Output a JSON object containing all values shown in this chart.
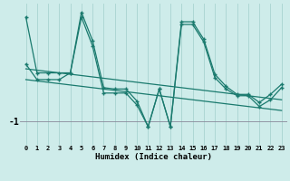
{
  "xlabel": "Humidex (Indice chaleur)",
  "background_color": "#ceecea",
  "line_color": "#1a7a6e",
  "grid_color": "#a8d4d0",
  "y_tick_val": -1.0,
  "y_tick_label": "-1",
  "xlim": [
    -0.5,
    23.5
  ],
  "ylim": [
    -1.35,
    0.75
  ],
  "series1": [
    0.55,
    -0.28,
    -0.28,
    -0.28,
    -0.28,
    0.62,
    0.2,
    -0.5,
    -0.52,
    -0.52,
    -0.7,
    -1.08,
    -0.52,
    -1.08,
    0.48,
    0.48,
    0.22,
    -0.3,
    -0.48,
    -0.6,
    -0.6,
    -0.72,
    -0.6,
    -0.45
  ],
  "series2": [
    -0.15,
    -0.38,
    -0.38,
    -0.38,
    -0.28,
    0.55,
    0.12,
    -0.58,
    -0.58,
    -0.58,
    -0.76,
    -1.08,
    -0.52,
    -1.08,
    0.44,
    0.44,
    0.18,
    -0.35,
    -0.52,
    -0.62,
    -0.62,
    -0.78,
    -0.68,
    -0.5
  ],
  "trend1": [
    -0.22,
    -0.24,
    -0.26,
    -0.28,
    -0.3,
    -0.32,
    -0.34,
    -0.36,
    -0.38,
    -0.4,
    -0.42,
    -0.44,
    -0.46,
    -0.48,
    -0.5,
    -0.52,
    -0.54,
    -0.56,
    -0.58,
    -0.6,
    -0.62,
    -0.64,
    -0.66,
    -0.68
  ],
  "trend2": [
    -0.38,
    -0.4,
    -0.42,
    -0.44,
    -0.46,
    -0.48,
    -0.5,
    -0.52,
    -0.54,
    -0.56,
    -0.58,
    -0.6,
    -0.62,
    -0.64,
    -0.66,
    -0.68,
    -0.7,
    -0.72,
    -0.74,
    -0.76,
    -0.78,
    -0.8,
    -0.82,
    -0.84
  ]
}
